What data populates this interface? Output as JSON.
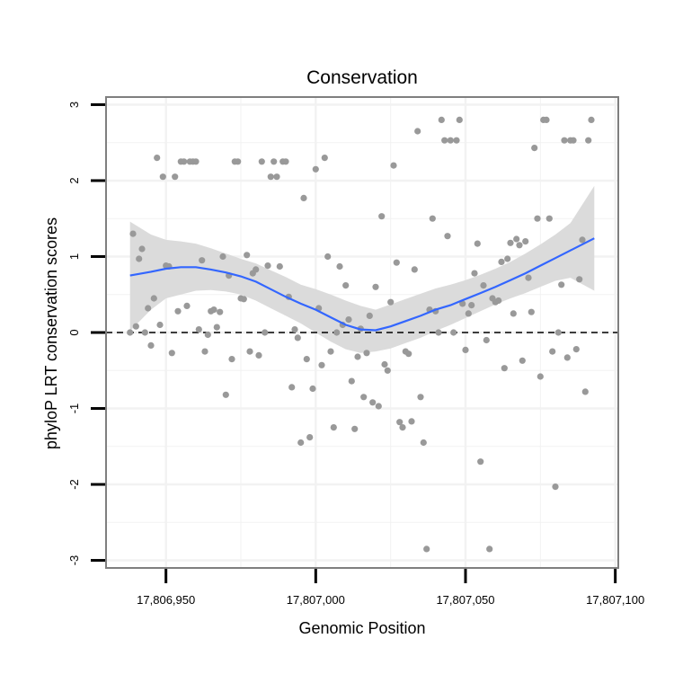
{
  "chart_data": {
    "type": "scatter",
    "title": "Conservation",
    "xlabel": "Genomic Position",
    "ylabel": "phyloP LRT conservation scores",
    "xlim": [
      17806930,
      17807101
    ],
    "ylim": [
      -3.1,
      3.1
    ],
    "x_ticks": [
      17806950,
      17807000,
      17807050,
      17807100
    ],
    "x_tick_labels": [
      "17,806,950",
      "17,807,000",
      "17,807,050",
      "17,807,100"
    ],
    "y_ticks": [
      -3,
      -2,
      -1,
      0,
      1,
      2,
      3
    ],
    "y_tick_labels": [
      "-3",
      "-2",
      "-1",
      "0",
      "1",
      "2",
      "3"
    ],
    "reference_line": {
      "y": 0,
      "style": "dashed"
    },
    "colors": {
      "points": "#999999",
      "smooth_line": "#3366ff",
      "confidence_band": "#d9d9d9",
      "reference_line": "#000000",
      "grid": "#f2f2f2",
      "frame": "#7f7f7f"
    },
    "points": [
      {
        "x": 17806938,
        "y": 0.0
      },
      {
        "x": 17806939,
        "y": 1.3
      },
      {
        "x": 17806940,
        "y": 0.08
      },
      {
        "x": 17806941,
        "y": 0.97
      },
      {
        "x": 17806942,
        "y": 1.1
      },
      {
        "x": 17806943,
        "y": 0.0
      },
      {
        "x": 17806944,
        "y": 0.32
      },
      {
        "x": 17806945,
        "y": -0.17
      },
      {
        "x": 17806946,
        "y": 0.45
      },
      {
        "x": 17806947,
        "y": 2.3
      },
      {
        "x": 17806948,
        "y": 0.1
      },
      {
        "x": 17806949,
        "y": 2.05
      },
      {
        "x": 17806950,
        "y": 0.88
      },
      {
        "x": 17806951,
        "y": 0.87
      },
      {
        "x": 17806952,
        "y": -0.27
      },
      {
        "x": 17806953,
        "y": 2.05
      },
      {
        "x": 17806954,
        "y": 0.28
      },
      {
        "x": 17806955,
        "y": 2.25
      },
      {
        "x": 17806956,
        "y": 2.25
      },
      {
        "x": 17806957,
        "y": 0.35
      },
      {
        "x": 17806958,
        "y": 2.25
      },
      {
        "x": 17806959,
        "y": 2.25
      },
      {
        "x": 17806960,
        "y": 2.25
      },
      {
        "x": 17806961,
        "y": 0.04
      },
      {
        "x": 17806962,
        "y": 0.95
      },
      {
        "x": 17806963,
        "y": -0.25
      },
      {
        "x": 17806964,
        "y": -0.03
      },
      {
        "x": 17806965,
        "y": 0.28
      },
      {
        "x": 17806966,
        "y": 0.3
      },
      {
        "x": 17806967,
        "y": 0.07
      },
      {
        "x": 17806968,
        "y": 0.27
      },
      {
        "x": 17806969,
        "y": 1.0
      },
      {
        "x": 17806970,
        "y": -0.82
      },
      {
        "x": 17806971,
        "y": 0.75
      },
      {
        "x": 17806972,
        "y": -0.35
      },
      {
        "x": 17806973,
        "y": 2.25
      },
      {
        "x": 17806974,
        "y": 2.25
      },
      {
        "x": 17806975,
        "y": 0.45
      },
      {
        "x": 17806976,
        "y": 0.44
      },
      {
        "x": 17806977,
        "y": 1.02
      },
      {
        "x": 17806978,
        "y": -0.25
      },
      {
        "x": 17806979,
        "y": 0.78
      },
      {
        "x": 17806980,
        "y": 0.83
      },
      {
        "x": 17806981,
        "y": -0.3
      },
      {
        "x": 17806982,
        "y": 2.25
      },
      {
        "x": 17806983,
        "y": 0.0
      },
      {
        "x": 17806984,
        "y": 0.88
      },
      {
        "x": 17806985,
        "y": 2.05
      },
      {
        "x": 17806986,
        "y": 2.25
      },
      {
        "x": 17806987,
        "y": 2.05
      },
      {
        "x": 17806988,
        "y": 0.87
      },
      {
        "x": 17806989,
        "y": 2.25
      },
      {
        "x": 17806990,
        "y": 2.25
      },
      {
        "x": 17806991,
        "y": 0.47
      },
      {
        "x": 17806992,
        "y": -0.72
      },
      {
        "x": 17806993,
        "y": 0.04
      },
      {
        "x": 17806994,
        "y": -0.07
      },
      {
        "x": 17806995,
        "y": -1.45
      },
      {
        "x": 17806996,
        "y": 1.77
      },
      {
        "x": 17806997,
        "y": -0.35
      },
      {
        "x": 17806998,
        "y": -1.38
      },
      {
        "x": 17806999,
        "y": -0.74
      },
      {
        "x": 17807000,
        "y": 2.15
      },
      {
        "x": 17807001,
        "y": 0.32
      },
      {
        "x": 17807002,
        "y": -0.43
      },
      {
        "x": 17807003,
        "y": 2.3
      },
      {
        "x": 17807004,
        "y": 1.0
      },
      {
        "x": 17807005,
        "y": -0.25
      },
      {
        "x": 17807006,
        "y": -1.25
      },
      {
        "x": 17807007,
        "y": 0.0
      },
      {
        "x": 17807008,
        "y": 0.87
      },
      {
        "x": 17807009,
        "y": 0.1
      },
      {
        "x": 17807010,
        "y": 0.62
      },
      {
        "x": 17807011,
        "y": 0.17
      },
      {
        "x": 17807012,
        "y": -0.64
      },
      {
        "x": 17807013,
        "y": -1.27
      },
      {
        "x": 17807014,
        "y": -0.32
      },
      {
        "x": 17807015,
        "y": 0.05
      },
      {
        "x": 17807016,
        "y": -0.85
      },
      {
        "x": 17807017,
        "y": -0.27
      },
      {
        "x": 17807018,
        "y": 0.22
      },
      {
        "x": 17807019,
        "y": -0.92
      },
      {
        "x": 17807020,
        "y": 0.6
      },
      {
        "x": 17807021,
        "y": -0.97
      },
      {
        "x": 17807022,
        "y": 1.53
      },
      {
        "x": 17807023,
        "y": -0.42
      },
      {
        "x": 17807024,
        "y": -0.5
      },
      {
        "x": 17807025,
        "y": 0.4
      },
      {
        "x": 17807026,
        "y": 2.2
      },
      {
        "x": 17807027,
        "y": 0.92
      },
      {
        "x": 17807028,
        "y": -1.18
      },
      {
        "x": 17807029,
        "y": -1.25
      },
      {
        "x": 17807030,
        "y": -0.25
      },
      {
        "x": 17807031,
        "y": -0.28
      },
      {
        "x": 17807032,
        "y": -1.17
      },
      {
        "x": 17807033,
        "y": 0.83
      },
      {
        "x": 17807034,
        "y": 2.65
      },
      {
        "x": 17807035,
        "y": -0.85
      },
      {
        "x": 17807036,
        "y": -1.45
      },
      {
        "x": 17807037,
        "y": -2.85
      },
      {
        "x": 17807038,
        "y": 0.3
      },
      {
        "x": 17807039,
        "y": 1.5
      },
      {
        "x": 17807040,
        "y": 0.28
      },
      {
        "x": 17807041,
        "y": 0.0
      },
      {
        "x": 17807042,
        "y": 2.8
      },
      {
        "x": 17807043,
        "y": 2.53
      },
      {
        "x": 17807044,
        "y": 1.27
      },
      {
        "x": 17807045,
        "y": 2.53
      },
      {
        "x": 17807046,
        "y": 0.0
      },
      {
        "x": 17807047,
        "y": 2.53
      },
      {
        "x": 17807048,
        "y": 2.8
      },
      {
        "x": 17807049,
        "y": 0.38
      },
      {
        "x": 17807050,
        "y": -0.23
      },
      {
        "x": 17807051,
        "y": 0.25
      },
      {
        "x": 17807052,
        "y": 0.36
      },
      {
        "x": 17807053,
        "y": 0.78
      },
      {
        "x": 17807054,
        "y": 1.17
      },
      {
        "x": 17807055,
        "y": -1.7
      },
      {
        "x": 17807056,
        "y": 0.62
      },
      {
        "x": 17807057,
        "y": -0.1
      },
      {
        "x": 17807058,
        "y": -2.85
      },
      {
        "x": 17807059,
        "y": 0.45
      },
      {
        "x": 17807060,
        "y": 0.4
      },
      {
        "x": 17807061,
        "y": 0.42
      },
      {
        "x": 17807062,
        "y": 0.93
      },
      {
        "x": 17807063,
        "y": -0.47
      },
      {
        "x": 17807064,
        "y": 0.97
      },
      {
        "x": 17807065,
        "y": 1.18
      },
      {
        "x": 17807066,
        "y": 0.25
      },
      {
        "x": 17807067,
        "y": 1.23
      },
      {
        "x": 17807068,
        "y": 1.15
      },
      {
        "x": 17807069,
        "y": -0.37
      },
      {
        "x": 17807070,
        "y": 1.2
      },
      {
        "x": 17807071,
        "y": 0.72
      },
      {
        "x": 17807072,
        "y": 0.27
      },
      {
        "x": 17807073,
        "y": 2.43
      },
      {
        "x": 17807074,
        "y": 1.5
      },
      {
        "x": 17807075,
        "y": -0.58
      },
      {
        "x": 17807076,
        "y": 2.8
      },
      {
        "x": 17807077,
        "y": 2.8
      },
      {
        "x": 17807078,
        "y": 1.5
      },
      {
        "x": 17807079,
        "y": -0.25
      },
      {
        "x": 17807080,
        "y": -2.03
      },
      {
        "x": 17807081,
        "y": 0.0
      },
      {
        "x": 17807082,
        "y": 0.63
      },
      {
        "x": 17807083,
        "y": 2.53
      },
      {
        "x": 17807084,
        "y": -0.33
      },
      {
        "x": 17807085,
        "y": 2.53
      },
      {
        "x": 17807086,
        "y": 2.53
      },
      {
        "x": 17807087,
        "y": -0.22
      },
      {
        "x": 17807088,
        "y": 0.7
      },
      {
        "x": 17807089,
        "y": 1.22
      },
      {
        "x": 17807090,
        "y": -0.78
      },
      {
        "x": 17807091,
        "y": 2.53
      },
      {
        "x": 17807092,
        "y": 2.8
      }
    ],
    "smooth_fit": {
      "x": [
        17806938,
        17806945,
        17806950,
        17806955,
        17806960,
        17806965,
        17806970,
        17806975,
        17806980,
        17806985,
        17806990,
        17806995,
        17807000,
        17807005,
        17807010,
        17807015,
        17807020,
        17807025,
        17807030,
        17807035,
        17807040,
        17807045,
        17807050,
        17807055,
        17807060,
        17807065,
        17807070,
        17807075,
        17807080,
        17807085,
        17807093
      ],
      "y": [
        0.75,
        0.8,
        0.84,
        0.86,
        0.86,
        0.83,
        0.79,
        0.74,
        0.67,
        0.57,
        0.47,
        0.38,
        0.3,
        0.2,
        0.1,
        0.04,
        0.03,
        0.08,
        0.15,
        0.22,
        0.3,
        0.36,
        0.44,
        0.52,
        0.6,
        0.69,
        0.78,
        0.88,
        0.98,
        1.08,
        1.24
      ],
      "lower": [
        0.02,
        0.3,
        0.45,
        0.5,
        0.55,
        0.56,
        0.54,
        0.5,
        0.42,
        0.32,
        0.22,
        0.12,
        0.0,
        -0.12,
        -0.22,
        -0.27,
        -0.25,
        -0.21,
        -0.14,
        -0.07,
        0.02,
        0.1,
        0.19,
        0.28,
        0.37,
        0.45,
        0.52,
        0.6,
        0.68,
        0.72,
        0.55
      ],
      "upper": [
        1.46,
        1.29,
        1.22,
        1.2,
        1.17,
        1.11,
        1.04,
        0.97,
        0.91,
        0.82,
        0.73,
        0.63,
        0.57,
        0.5,
        0.42,
        0.35,
        0.3,
        0.37,
        0.44,
        0.51,
        0.58,
        0.63,
        0.69,
        0.76,
        0.84,
        0.93,
        1.04,
        1.16,
        1.29,
        1.44,
        1.93
      ]
    }
  }
}
